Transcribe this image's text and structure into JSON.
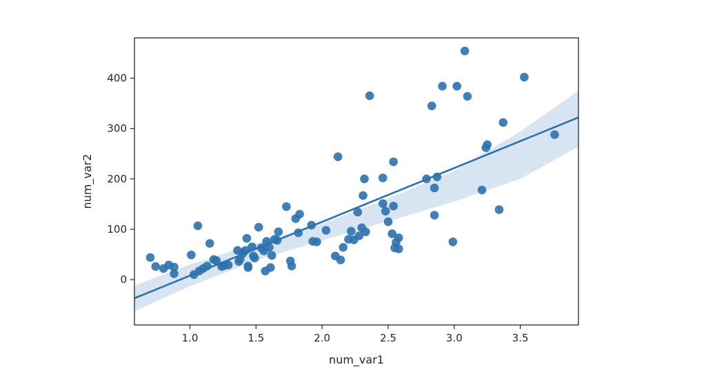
{
  "chart_data": {
    "type": "scatter",
    "title": "",
    "xlabel": "num_var1",
    "ylabel": "num_var2",
    "xlim": [
      0.58,
      3.94
    ],
    "ylim": [
      -90,
      480
    ],
    "xticks": [
      "1.0",
      "1.5",
      "2.0",
      "2.5",
      "3.0",
      "3.5"
    ],
    "yticks": [
      "0",
      "100",
      "200",
      "300",
      "400"
    ],
    "grid": false,
    "legend": "none",
    "colors": {
      "points": "#2c71ad",
      "line": "#2c71ad",
      "band": "#cfe0ef",
      "axes": "#262626"
    },
    "points": [
      [
        0.7,
        44
      ],
      [
        0.74,
        26
      ],
      [
        0.8,
        22
      ],
      [
        0.84,
        29
      ],
      [
        0.88,
        25
      ],
      [
        0.88,
        12
      ],
      [
        1.01,
        49
      ],
      [
        1.03,
        10
      ],
      [
        1.06,
        107
      ],
      [
        1.07,
        17
      ],
      [
        1.1,
        22
      ],
      [
        1.13,
        27
      ],
      [
        1.15,
        72
      ],
      [
        1.18,
        40
      ],
      [
        1.2,
        38
      ],
      [
        1.24,
        26
      ],
      [
        1.26,
        28
      ],
      [
        1.29,
        29
      ],
      [
        1.36,
        58
      ],
      [
        1.37,
        36
      ],
      [
        1.38,
        41
      ],
      [
        1.4,
        52
      ],
      [
        1.42,
        58
      ],
      [
        1.43,
        82
      ],
      [
        1.44,
        27
      ],
      [
        1.44,
        24
      ],
      [
        1.47,
        65
      ],
      [
        1.48,
        47
      ],
      [
        1.49,
        43
      ],
      [
        1.52,
        104
      ],
      [
        1.54,
        63
      ],
      [
        1.56,
        57
      ],
      [
        1.57,
        17
      ],
      [
        1.58,
        76
      ],
      [
        1.6,
        64
      ],
      [
        1.61,
        24
      ],
      [
        1.62,
        48
      ],
      [
        1.64,
        80
      ],
      [
        1.66,
        78
      ],
      [
        1.67,
        95
      ],
      [
        1.73,
        145
      ],
      [
        1.76,
        37
      ],
      [
        1.77,
        27
      ],
      [
        1.8,
        121
      ],
      [
        1.82,
        93
      ],
      [
        1.83,
        130
      ],
      [
        1.92,
        108
      ],
      [
        1.93,
        76
      ],
      [
        1.96,
        75
      ],
      [
        2.03,
        98
      ],
      [
        2.1,
        47
      ],
      [
        2.12,
        244
      ],
      [
        2.14,
        39
      ],
      [
        2.16,
        64
      ],
      [
        2.2,
        80
      ],
      [
        2.22,
        96
      ],
      [
        2.24,
        79
      ],
      [
        2.27,
        134
      ],
      [
        2.28,
        87
      ],
      [
        2.3,
        103
      ],
      [
        2.31,
        167
      ],
      [
        2.32,
        200
      ],
      [
        2.33,
        95
      ],
      [
        2.36,
        365
      ],
      [
        2.46,
        202
      ],
      [
        2.46,
        151
      ],
      [
        2.48,
        136
      ],
      [
        2.5,
        115
      ],
      [
        2.53,
        91
      ],
      [
        2.54,
        234
      ],
      [
        2.54,
        146
      ],
      [
        2.55,
        63
      ],
      [
        2.56,
        74
      ],
      [
        2.58,
        83
      ],
      [
        2.58,
        61
      ],
      [
        2.79,
        200
      ],
      [
        2.83,
        345
      ],
      [
        2.85,
        182
      ],
      [
        2.85,
        128
      ],
      [
        2.87,
        204
      ],
      [
        2.91,
        384
      ],
      [
        2.99,
        75
      ],
      [
        3.02,
        384
      ],
      [
        3.08,
        454
      ],
      [
        3.1,
        364
      ],
      [
        3.21,
        178
      ],
      [
        3.24,
        262
      ],
      [
        3.25,
        268
      ],
      [
        3.34,
        139
      ],
      [
        3.37,
        312
      ],
      [
        3.53,
        402
      ],
      [
        3.76,
        288
      ]
    ],
    "regression": {
      "x": [
        0.58,
        3.94
      ],
      "y": [
        -37,
        322
      ]
    },
    "confidence_band": {
      "x": [
        0.58,
        1.0,
        1.5,
        2.0,
        2.5,
        3.0,
        3.5,
        3.94
      ],
      "lower": [
        -63,
        -13,
        38,
        78,
        116,
        155,
        200,
        264
      ],
      "upper": [
        -12,
        30,
        72,
        111,
        161,
        216,
        294,
        375
      ]
    }
  }
}
